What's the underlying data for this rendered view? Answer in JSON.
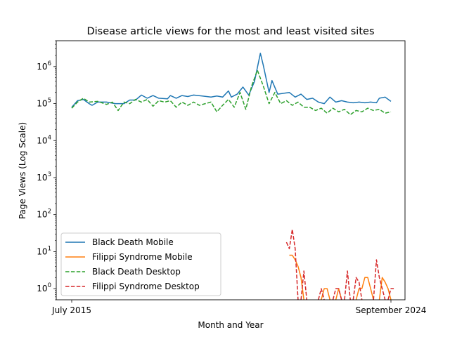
{
  "chart_data": {
    "type": "line",
    "title": "Disease article views for the most and least visited sites",
    "xlabel": "Month and Year",
    "ylabel": "Page Views (Log Scale)",
    "x_range": [
      "2015-07",
      "2024-09"
    ],
    "x_ticks": [
      "July 2015",
      "September 2024"
    ],
    "y_scale": "log",
    "y_range": [
      0.5,
      5000000
    ],
    "y_ticks": [
      {
        "value": 1,
        "label": "10^0",
        "base": "10",
        "exp": "0"
      },
      {
        "value": 10,
        "label": "10^1",
        "base": "10",
        "exp": "1"
      },
      {
        "value": 100,
        "label": "10^2",
        "base": "10",
        "exp": "2"
      },
      {
        "value": 1000,
        "label": "10^3",
        "base": "10",
        "exp": "3"
      },
      {
        "value": 10000,
        "label": "10^4",
        "base": "10",
        "exp": "4"
      },
      {
        "value": 100000,
        "label": "10^5",
        "base": "10",
        "exp": "5"
      },
      {
        "value": 1000000,
        "label": "10^6",
        "base": "10",
        "exp": "6"
      }
    ],
    "grid": false,
    "legend_position": "lower-left",
    "series": [
      {
        "name": "Black Death Mobile",
        "color": "#1f77b4",
        "dash": "solid",
        "points": [
          [
            "2015-07",
            80000
          ],
          [
            "2015-09",
            120000
          ],
          [
            "2015-11",
            130000
          ],
          [
            "2016-01",
            100000
          ],
          [
            "2016-02",
            90000
          ],
          [
            "2016-04",
            110000
          ],
          [
            "2016-07",
            110000
          ],
          [
            "2016-10",
            100000
          ],
          [
            "2017-01",
            100000
          ],
          [
            "2017-03",
            125000
          ],
          [
            "2017-05",
            125000
          ],
          [
            "2017-07",
            170000
          ],
          [
            "2017-09",
            140000
          ],
          [
            "2017-11",
            165000
          ],
          [
            "2018-01",
            140000
          ],
          [
            "2018-04",
            135000
          ],
          [
            "2018-05",
            165000
          ],
          [
            "2018-07",
            140000
          ],
          [
            "2018-09",
            165000
          ],
          [
            "2018-11",
            155000
          ],
          [
            "2019-01",
            170000
          ],
          [
            "2019-04",
            160000
          ],
          [
            "2019-07",
            150000
          ],
          [
            "2019-09",
            160000
          ],
          [
            "2019-11",
            150000
          ],
          [
            "2020-01",
            220000
          ],
          [
            "2020-02",
            150000
          ],
          [
            "2020-04",
            180000
          ],
          [
            "2020-06",
            280000
          ],
          [
            "2020-08",
            170000
          ],
          [
            "2020-10",
            400000
          ],
          [
            "2020-12",
            2300000
          ],
          [
            "2021-01",
            1100000
          ],
          [
            "2021-03",
            200000
          ],
          [
            "2021-04",
            420000
          ],
          [
            "2021-06",
            180000
          ],
          [
            "2021-08",
            190000
          ],
          [
            "2021-10",
            200000
          ],
          [
            "2021-12",
            150000
          ],
          [
            "2022-02",
            180000
          ],
          [
            "2022-04",
            130000
          ],
          [
            "2022-06",
            140000
          ],
          [
            "2022-08",
            110000
          ],
          [
            "2022-10",
            100000
          ],
          [
            "2022-12",
            150000
          ],
          [
            "2023-02",
            110000
          ],
          [
            "2023-04",
            120000
          ],
          [
            "2023-06",
            110000
          ],
          [
            "2023-08",
            105000
          ],
          [
            "2023-10",
            110000
          ],
          [
            "2023-12",
            105000
          ],
          [
            "2024-02",
            110000
          ],
          [
            "2024-04",
            105000
          ],
          [
            "2024-05",
            140000
          ],
          [
            "2024-07",
            150000
          ],
          [
            "2024-09",
            115000
          ]
        ]
      },
      {
        "name": "Filippi Syndrome Mobile",
        "color": "#ff7f0e",
        "dash": "solid",
        "segments": [
          [
            [
              "2021-10",
              8
            ],
            [
              "2021-11",
              8
            ],
            [
              "2021-12",
              6
            ],
            [
              "2022-01",
              4
            ],
            [
              "2022-02",
              2
            ],
            [
              "2022-03",
              0.5
            ]
          ],
          [
            [
              "2022-09",
              0.5
            ],
            [
              "2022-10",
              1
            ],
            [
              "2022-11",
              1
            ],
            [
              "2022-12",
              0.5
            ]
          ],
          [
            [
              "2023-02",
              0.5
            ],
            [
              "2023-03",
              1
            ],
            [
              "2023-04",
              0.5
            ]
          ],
          [
            [
              "2023-09",
              0.5
            ],
            [
              "2023-10",
              1
            ],
            [
              "2023-11",
              1
            ],
            [
              "2023-12",
              2
            ],
            [
              "2024-01",
              2
            ],
            [
              "2024-02",
              1
            ],
            [
              "2024-03",
              0.5
            ]
          ],
          [
            [
              "2024-05",
              0.5
            ],
            [
              "2024-06",
              2
            ],
            [
              "2024-07",
              1.5
            ],
            [
              "2024-08",
              1
            ],
            [
              "2024-09",
              0.5
            ]
          ]
        ]
      },
      {
        "name": "Black Death Desktop",
        "color": "#2ca02c",
        "dash": "dashed",
        "points": [
          [
            "2015-07",
            75000
          ],
          [
            "2015-09",
            110000
          ],
          [
            "2015-11",
            140000
          ],
          [
            "2016-01",
            110000
          ],
          [
            "2016-04",
            115000
          ],
          [
            "2016-07",
            95000
          ],
          [
            "2016-09",
            110000
          ],
          [
            "2016-11",
            65000
          ],
          [
            "2017-01",
            110000
          ],
          [
            "2017-03",
            100000
          ],
          [
            "2017-05",
            130000
          ],
          [
            "2017-07",
            110000
          ],
          [
            "2017-09",
            130000
          ],
          [
            "2017-11",
            85000
          ],
          [
            "2018-01",
            120000
          ],
          [
            "2018-03",
            110000
          ],
          [
            "2018-05",
            120000
          ],
          [
            "2018-07",
            80000
          ],
          [
            "2018-09",
            110000
          ],
          [
            "2018-11",
            90000
          ],
          [
            "2019-01",
            110000
          ],
          [
            "2019-03",
            90000
          ],
          [
            "2019-05",
            100000
          ],
          [
            "2019-07",
            110000
          ],
          [
            "2019-09",
            60000
          ],
          [
            "2019-11",
            90000
          ],
          [
            "2020-01",
            130000
          ],
          [
            "2020-03",
            80000
          ],
          [
            "2020-05",
            200000
          ],
          [
            "2020-07",
            70000
          ],
          [
            "2020-09",
            300000
          ],
          [
            "2020-11",
            800000
          ],
          [
            "2021-01",
            300000
          ],
          [
            "2021-03",
            100000
          ],
          [
            "2021-05",
            200000
          ],
          [
            "2021-07",
            100000
          ],
          [
            "2021-09",
            120000
          ],
          [
            "2021-11",
            90000
          ],
          [
            "2022-01",
            110000
          ],
          [
            "2022-03",
            80000
          ],
          [
            "2022-05",
            80000
          ],
          [
            "2022-07",
            65000
          ],
          [
            "2022-09",
            75000
          ],
          [
            "2022-11",
            55000
          ],
          [
            "2023-01",
            75000
          ],
          [
            "2023-03",
            60000
          ],
          [
            "2023-05",
            70000
          ],
          [
            "2023-07",
            50000
          ],
          [
            "2023-09",
            65000
          ],
          [
            "2023-11",
            60000
          ],
          [
            "2024-01",
            75000
          ],
          [
            "2024-03",
            65000
          ],
          [
            "2024-05",
            70000
          ],
          [
            "2024-07",
            55000
          ],
          [
            "2024-09",
            60000
          ]
        ]
      },
      {
        "name": "Filippi Syndrome Desktop",
        "color": "#d62728",
        "dash": "dashed",
        "segments": [
          [
            [
              "2021-09",
              18
            ],
            [
              "2021-10",
              12
            ],
            [
              "2021-11",
              40
            ],
            [
              "2021-12",
              12
            ],
            [
              "2022-01",
              0.5
            ]
          ],
          [
            [
              "2022-02",
              0.5
            ],
            [
              "2022-03",
              3
            ],
            [
              "2022-04",
              0.5
            ]
          ],
          [
            [
              "2022-08",
              0.5
            ],
            [
              "2022-09",
              1
            ],
            [
              "2022-10",
              0.5
            ]
          ],
          [
            [
              "2023-01",
              0.5
            ],
            [
              "2023-02",
              1
            ],
            [
              "2023-03",
              1
            ],
            [
              "2023-04",
              0.5
            ]
          ],
          [
            [
              "2023-05",
              0.5
            ],
            [
              "2023-06",
              3
            ],
            [
              "2023-07",
              0.5
            ]
          ],
          [
            [
              "2023-08",
              0.5
            ],
            [
              "2023-09",
              2
            ],
            [
              "2023-10",
              1.5
            ],
            [
              "2023-11",
              0.5
            ]
          ],
          [
            [
              "2024-03",
              0.5
            ],
            [
              "2024-04",
              6
            ],
            [
              "2024-05",
              2
            ],
            [
              "2024-06",
              1
            ],
            [
              "2024-07",
              0.5
            ]
          ],
          [
            [
              "2024-08",
              0.5
            ],
            [
              "2024-09",
              1
            ],
            [
              "2024-10",
              1
            ]
          ]
        ]
      }
    ]
  }
}
